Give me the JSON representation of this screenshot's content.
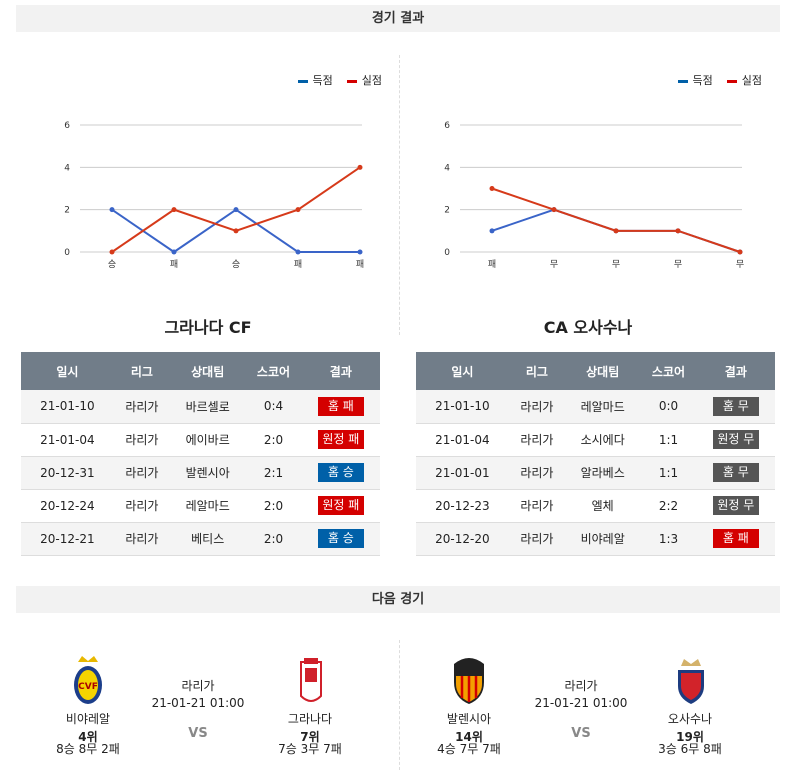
{
  "section1_title": "경기 결과",
  "section2_title": "다음 경기",
  "legend": {
    "scored": "득점",
    "conceded": "실점"
  },
  "colors": {
    "scored": "#3a64c8",
    "conceded": "#d63a1a",
    "loss": "#d40000",
    "win": "#0060a8",
    "draw": "#555555"
  },
  "chart_data": [
    {
      "type": "line",
      "categories": [
        "승",
        "패",
        "승",
        "패",
        "패"
      ],
      "ylim": [
        0,
        6
      ],
      "yticks": [
        0,
        2,
        4,
        6
      ],
      "series": [
        {
          "name": "득점",
          "values": [
            2,
            0,
            2,
            0,
            0
          ]
        },
        {
          "name": "실점",
          "values": [
            0,
            2,
            1,
            2,
            4
          ]
        }
      ]
    },
    {
      "type": "line",
      "categories": [
        "패",
        "무",
        "무",
        "무",
        "무"
      ],
      "ylim": [
        0,
        6
      ],
      "yticks": [
        0,
        2,
        4,
        6
      ],
      "series": [
        {
          "name": "득점",
          "values": [
            1,
            2,
            1,
            1,
            0
          ]
        },
        {
          "name": "실점",
          "values": [
            3,
            2,
            1,
            1,
            0
          ]
        }
      ]
    }
  ],
  "headers": [
    "일시",
    "리그",
    "상대팀",
    "스코어",
    "결과"
  ],
  "teams": [
    {
      "name": "그라나다 CF",
      "rows": [
        [
          "21-01-10",
          "라리가",
          "바르셀로",
          "0:4",
          "홈 패",
          "loss"
        ],
        [
          "21-01-04",
          "라리가",
          "에이바르",
          "2:0",
          "원정 패",
          "loss"
        ],
        [
          "20-12-31",
          "라리가",
          "발렌시아",
          "2:1",
          "홈 승",
          "win"
        ],
        [
          "20-12-24",
          "라리가",
          "레알마드",
          "2:0",
          "원정 패",
          "loss"
        ],
        [
          "20-12-21",
          "라리가",
          "베티스",
          "2:0",
          "홈 승",
          "win"
        ]
      ]
    },
    {
      "name": "CA 오사수나",
      "rows": [
        [
          "21-01-10",
          "라리가",
          "레알마드",
          "0:0",
          "홈 무",
          "draw"
        ],
        [
          "21-01-04",
          "라리가",
          "소시에다",
          "1:1",
          "원정 무",
          "draw"
        ],
        [
          "21-01-01",
          "라리가",
          "알라베스",
          "1:1",
          "홈 무",
          "draw"
        ],
        [
          "20-12-23",
          "라리가",
          "엘체",
          "2:2",
          "원정 무",
          "draw"
        ],
        [
          "20-12-20",
          "라리가",
          "비야레알",
          "1:3",
          "홈 패",
          "loss"
        ]
      ]
    }
  ],
  "next_matches": [
    {
      "league": "라리가",
      "datetime": "21-01-21 01:00",
      "vs": "VS",
      "home": {
        "name": "비야레알",
        "rank": "4위",
        "record": "8승 8무 2패"
      },
      "away": {
        "name": "그라나다",
        "rank": "7위",
        "record": "7승 3무 7패"
      }
    },
    {
      "league": "라리가",
      "datetime": "21-01-21 01:00",
      "vs": "VS",
      "home": {
        "name": "발렌시아",
        "rank": "14위",
        "record": "4승 7무 7패"
      },
      "away": {
        "name": "오사수나",
        "rank": "19위",
        "record": "3승 6무 8패"
      }
    }
  ]
}
